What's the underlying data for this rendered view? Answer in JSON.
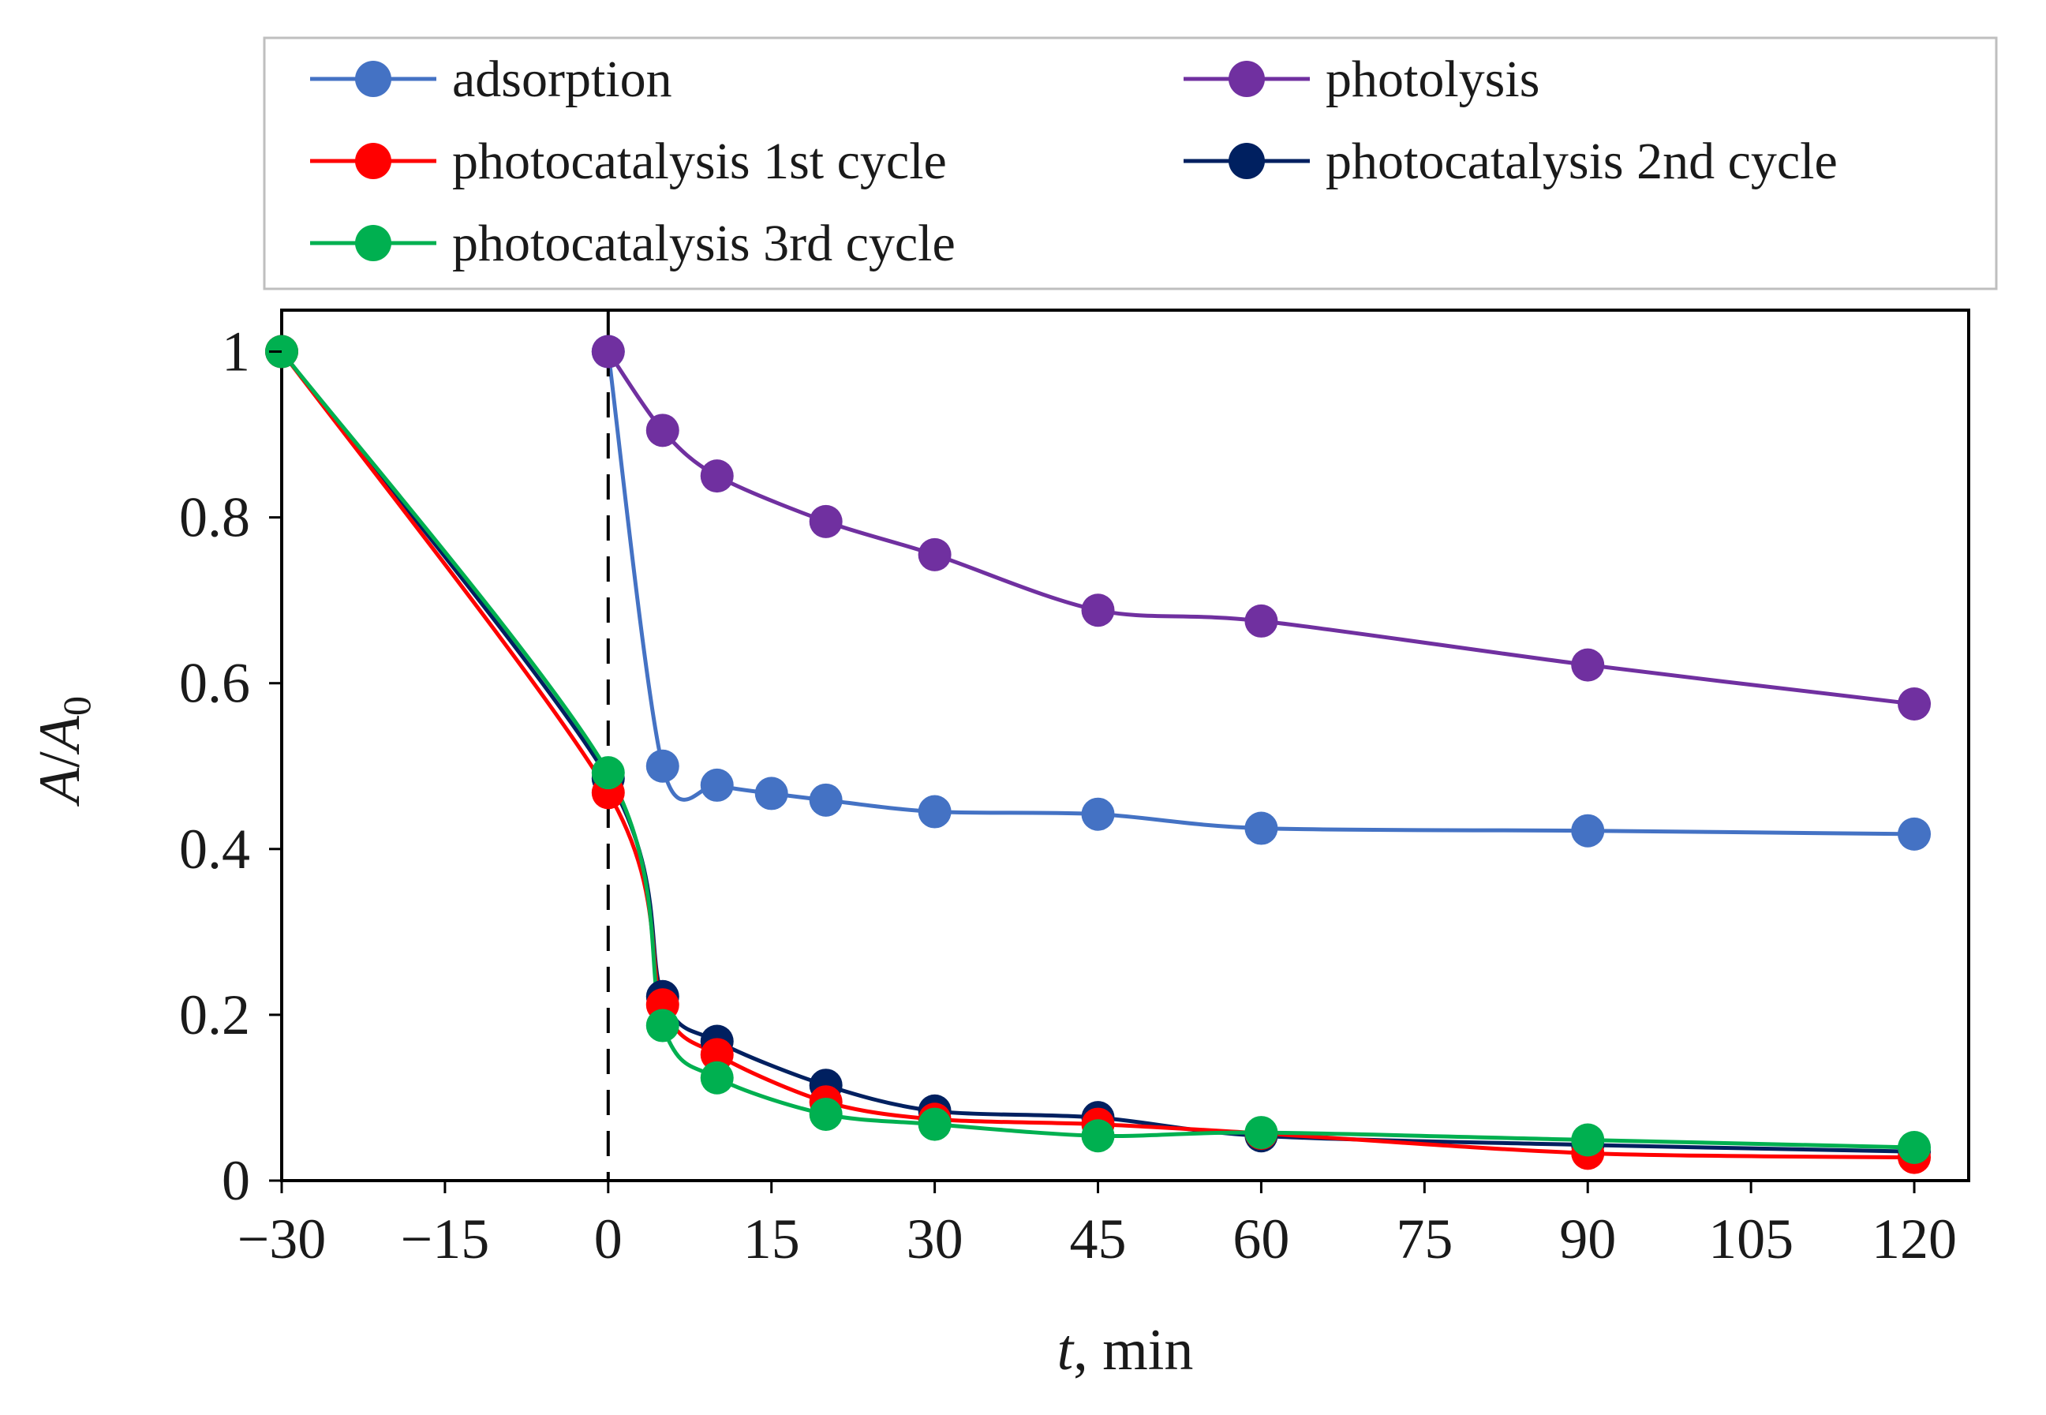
{
  "chart_data": {
    "type": "line",
    "title": "",
    "xlabel": {
      "var": "t",
      "rest": ", min"
    },
    "ylabel": {
      "var": "A",
      "sep": "/",
      "var2": "A",
      "sub": "0"
    },
    "xlim": [
      -30,
      125
    ],
    "ylim": [
      0,
      1.05
    ],
    "xticks": [
      {
        "value": -30,
        "label": "−30"
      },
      {
        "value": -15,
        "label": "−15"
      },
      {
        "value": 0,
        "label": "0"
      },
      {
        "value": 15,
        "label": "15"
      },
      {
        "value": 30,
        "label": "30"
      },
      {
        "value": 45,
        "label": "45"
      },
      {
        "value": 60,
        "label": "60"
      },
      {
        "value": 75,
        "label": "75"
      },
      {
        "value": 90,
        "label": "90"
      },
      {
        "value": 105,
        "label": "105"
      },
      {
        "value": 120,
        "label": "120"
      }
    ],
    "yticks": [
      {
        "value": 0,
        "label": "0"
      },
      {
        "value": 0.2,
        "label": "0.2"
      },
      {
        "value": 0.4,
        "label": "0.4"
      },
      {
        "value": 0.6,
        "label": "0.6"
      },
      {
        "value": 0.8,
        "label": "0.8"
      },
      {
        "value": 1,
        "label": "1"
      }
    ],
    "vline": {
      "x": 0,
      "style": "dashed"
    },
    "grid": false,
    "legend_position": "top",
    "series": [
      {
        "name": "adsorption",
        "color": "#4472c4",
        "x": [
          0,
          5,
          10,
          15,
          20,
          30,
          45,
          60,
          90,
          120
        ],
        "y": [
          1.0,
          0.5,
          0.477,
          0.467,
          0.459,
          0.445,
          0.442,
          0.425,
          0.422,
          0.418
        ]
      },
      {
        "name": "photolysis",
        "color": "#7030a0",
        "x": [
          0,
          5,
          10,
          20,
          30,
          45,
          60,
          90,
          120
        ],
        "y": [
          1.0,
          0.905,
          0.85,
          0.795,
          0.755,
          0.688,
          0.675,
          0.622,
          0.575
        ]
      },
      {
        "name": "photocatalysis 1st cycle",
        "color": "#ff0000",
        "x": [
          -30,
          0,
          5,
          10,
          20,
          30,
          45,
          60,
          90,
          120
        ],
        "y": [
          1.0,
          0.468,
          0.212,
          0.152,
          0.095,
          0.074,
          0.068,
          0.057,
          0.033,
          0.028
        ]
      },
      {
        "name": "photocatalysis 2nd cycle",
        "color": "#002060",
        "x": [
          -30,
          0,
          5,
          10,
          20,
          30,
          45,
          60,
          90,
          120
        ],
        "y": [
          1.0,
          0.485,
          0.222,
          0.168,
          0.115,
          0.084,
          0.076,
          0.054,
          0.043,
          0.035
        ]
      },
      {
        "name": "photocatalysis 3rd cycle",
        "color": "#00b050",
        "x": [
          -30,
          0,
          5,
          10,
          20,
          30,
          45,
          60,
          90,
          120
        ],
        "y": [
          1.0,
          0.492,
          0.187,
          0.124,
          0.08,
          0.068,
          0.054,
          0.058,
          0.049,
          0.04
        ]
      }
    ],
    "legend_layout": [
      [
        "adsorption",
        "photolysis"
      ],
      [
        "photocatalysis 1st cycle",
        "photocatalysis 2nd cycle"
      ],
      [
        "photocatalysis 3rd cycle"
      ]
    ]
  }
}
